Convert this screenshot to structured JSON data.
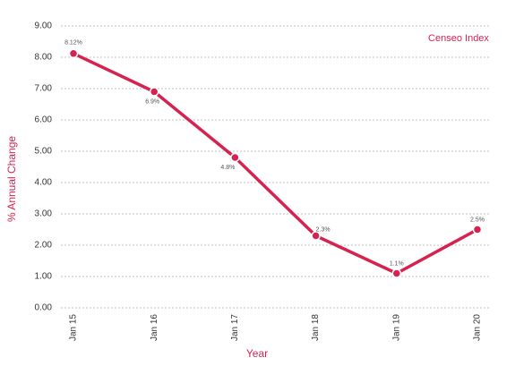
{
  "chart_data": {
    "type": "line",
    "title": null,
    "legend_label": "Censeo Index",
    "x_label": "Year",
    "y_label": "% Annual Change",
    "categories": [
      "Jan 15",
      "Jan 16",
      "Jan 17",
      "Jan 18",
      "Jan 19",
      "Jan 20"
    ],
    "values": [
      8.12,
      6.9,
      4.8,
      2.3,
      1.1,
      2.5
    ],
    "value_labels": [
      "8.12%",
      "6.9%",
      "4.8%",
      "2.3%",
      "1.1%",
      "2.5%"
    ],
    "color": "#d7224f",
    "ylim": [
      0,
      9
    ],
    "yticks": [
      {
        "value": 0,
        "label": "0.00"
      },
      {
        "value": 1,
        "label": "1.00"
      },
      {
        "value": 2,
        "label": "2.00"
      },
      {
        "value": 3,
        "label": "3.00"
      },
      {
        "value": 4,
        "label": "4.00"
      },
      {
        "value": 5,
        "label": "5.00"
      },
      {
        "value": 6,
        "label": "6.00"
      },
      {
        "value": 7,
        "label": "7.00"
      },
      {
        "value": 8,
        "label": "8.00"
      },
      {
        "value": 9,
        "label": "9.00"
      }
    ],
    "grid": true
  }
}
